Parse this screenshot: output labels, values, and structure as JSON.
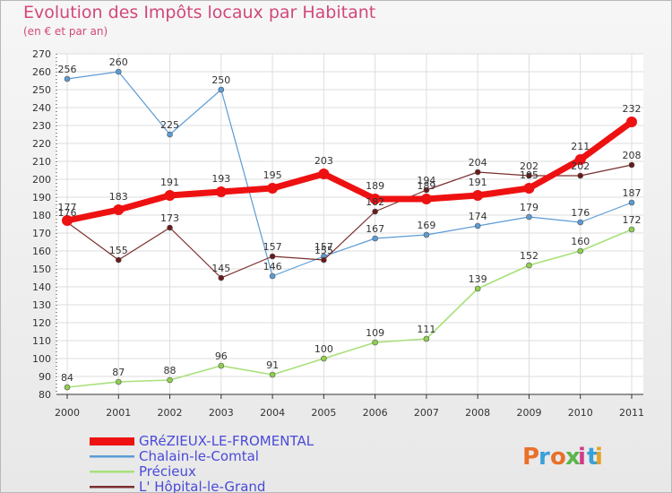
{
  "title": "Evolution des Impôts locaux par Habitant",
  "subtitle": "(en € et par an)",
  "logo": {
    "text": "Proxiti",
    "letter_colors": [
      "#e8702a",
      "#3aa0d8",
      "#e8702a",
      "#5ab54a",
      "#d23a8a",
      "#3aa0d8",
      "#e8a020"
    ]
  },
  "chart_data": {
    "type": "line",
    "x": [
      "2000",
      "2001",
      "2002",
      "2003",
      "2004",
      "2005",
      "2006",
      "2007",
      "2008",
      "2009",
      "2010",
      "2011"
    ],
    "ylim": [
      80,
      270
    ],
    "yticks": [
      80,
      90,
      100,
      110,
      120,
      130,
      140,
      150,
      160,
      170,
      180,
      190,
      200,
      210,
      220,
      230,
      240,
      250,
      260,
      270
    ],
    "grid": true,
    "legend_position": "bottom-left",
    "series": [
      {
        "name": "Chalain-le-Comtal",
        "color": "#5b9bd5",
        "line_width": 1.2,
        "marker_color": "#5b9bd5",
        "values": [
          256,
          260,
          225,
          250,
          146,
          157,
          167,
          169,
          174,
          179,
          176,
          187
        ]
      },
      {
        "name": "Précieux",
        "color": "#a8e07a",
        "line_width": 1.6,
        "marker_color": "#8ed04e",
        "values": [
          84,
          87,
          88,
          96,
          91,
          100,
          109,
          111,
          139,
          152,
          160,
          172
        ]
      },
      {
        "name": "L' Hôpital-le-Grand",
        "color": "#7a2e2e",
        "line_width": 1.2,
        "marker_color": "#6a1a1a",
        "values": [
          176,
          155,
          173,
          145,
          157,
          155,
          182,
          194,
          204,
          202,
          202,
          208
        ]
      },
      {
        "name": "GRéZIEUX-LE-FROMENTAL",
        "color": "#ee1111",
        "line_width": 7,
        "marker_color": "#ee1111",
        "values": [
          177,
          183,
          191,
          193,
          195,
          203,
          189,
          189,
          191,
          195,
          211,
          232
        ]
      }
    ],
    "legend_order": [
      3,
      0,
      1,
      2
    ]
  }
}
